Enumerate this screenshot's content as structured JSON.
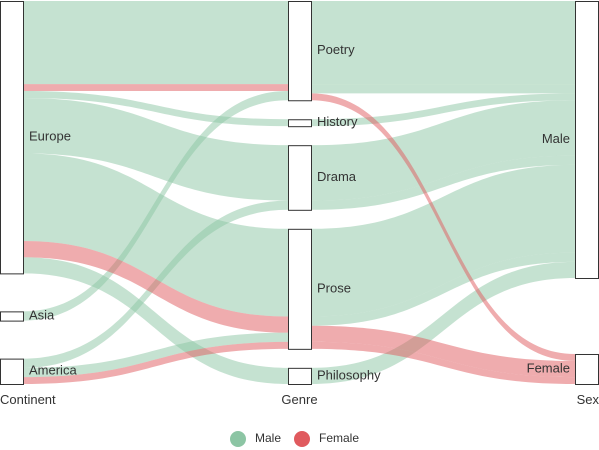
{
  "chart_data": {
    "type": "sankey",
    "columns": [
      {
        "title": "Continent",
        "nodes": [
          "Europe",
          "Asia",
          "America"
        ]
      },
      {
        "title": "Genre",
        "nodes": [
          "Poetry",
          "History",
          "Drama",
          "Prose",
          "Philosophy"
        ]
      },
      {
        "title": "Sex",
        "nodes": [
          "Male",
          "Female"
        ]
      }
    ],
    "paths": [
      {
        "sex": "Male",
        "continent": "Europe",
        "genre": "Poetry",
        "value": 36
      },
      {
        "sex": "Male",
        "continent": "Europe",
        "genre": "History",
        "value": 3
      },
      {
        "sex": "Male",
        "continent": "Europe",
        "genre": "Drama",
        "value": 24
      },
      {
        "sex": "Male",
        "continent": "Europe",
        "genre": "Prose",
        "value": 38
      },
      {
        "sex": "Male",
        "continent": "Europe",
        "genre": "Philosophy",
        "value": 7
      },
      {
        "sex": "Female",
        "continent": "Europe",
        "genre": "Poetry",
        "value": 3
      },
      {
        "sex": "Female",
        "continent": "Europe",
        "genre": "Prose",
        "value": 7
      },
      {
        "sex": "Male",
        "continent": "Asia",
        "genre": "Poetry",
        "value": 4
      },
      {
        "sex": "Male",
        "continent": "America",
        "genre": "Drama",
        "value": 4
      },
      {
        "sex": "Male",
        "continent": "America",
        "genre": "Prose",
        "value": 4
      },
      {
        "sex": "Female",
        "continent": "America",
        "genre": "Prose",
        "value": 3
      }
    ],
    "colors": {
      "Male": "#8cc5a4",
      "Female": "#e05a5e"
    },
    "legend": {
      "position": "bottom",
      "items": [
        "Male",
        "Female"
      ]
    }
  }
}
